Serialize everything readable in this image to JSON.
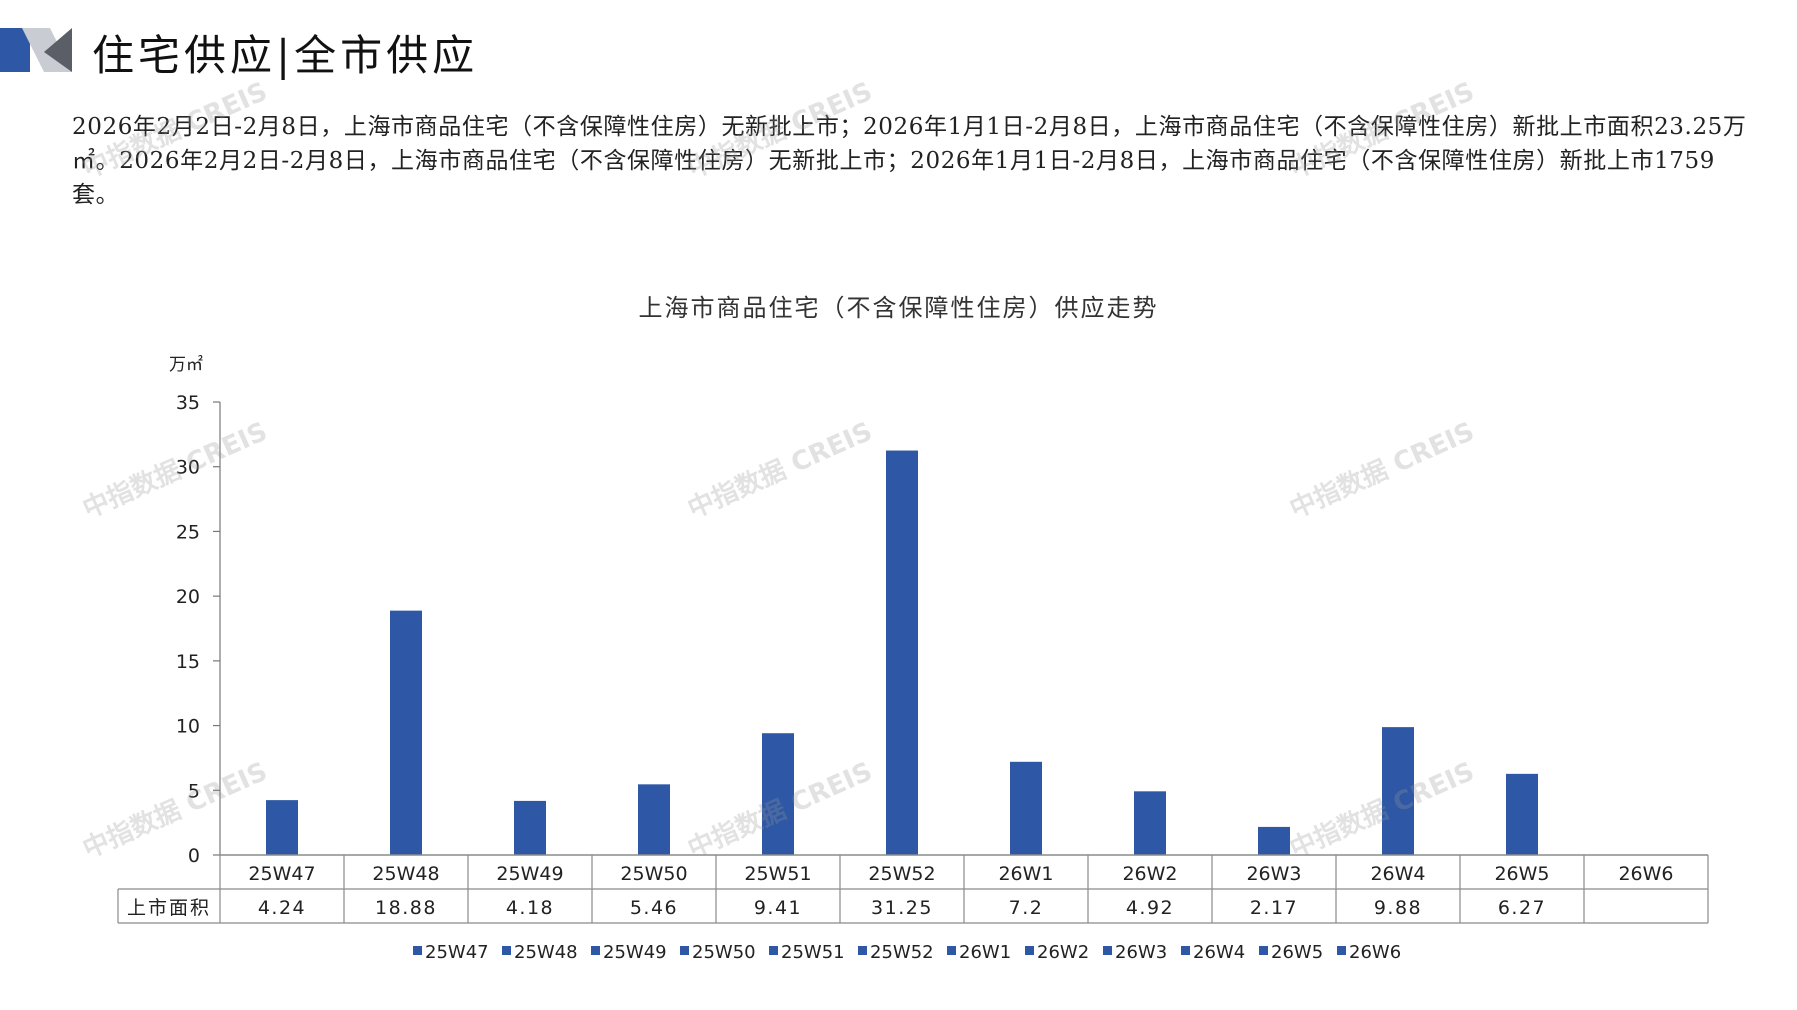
{
  "header": {
    "title": "住宅供应|全市供应",
    "accent_color": "#2E58A6",
    "secondary_color": "#BFC3CC"
  },
  "summary": {
    "text": "2026年2月2日-2月8日，上海市商品住宅（不含保障性住房）无新批上市；2026年1月1日-2月8日，上海市商品住宅（不含保障性住房）新批上市面积23.25万㎡。2026年2月2日-2月8日，上海市商品住宅（不含保障性住房）无新批上市；2026年1月1日-2月8日，上海市商品住宅（不含保障性住房）新批上市1759套。"
  },
  "watermark": {
    "text": "中指数据 CREIS"
  },
  "chart_data": {
    "type": "bar",
    "title": "上海市商品住宅（不含保障性住房）供应走势",
    "ylabel": "万㎡",
    "ylim": [
      0,
      35
    ],
    "yticks": [
      0,
      5,
      10,
      15,
      20,
      25,
      30,
      35
    ],
    "categories": [
      "25W47",
      "25W48",
      "25W49",
      "25W50",
      "25W51",
      "25W52",
      "26W1",
      "26W2",
      "26W3",
      "26W4",
      "26W5",
      "26W6"
    ],
    "series": [
      {
        "name": "上市面积",
        "values": [
          4.24,
          18.88,
          4.18,
          5.46,
          9.41,
          31.25,
          7.2,
          4.92,
          2.17,
          9.88,
          6.27,
          null
        ],
        "labels": [
          "4.24",
          "18.88",
          "4.18",
          "5.46",
          "9.41",
          "31.25",
          "7.2",
          "4.92",
          "2.17",
          "9.88",
          "6.27",
          ""
        ]
      }
    ],
    "bar_color": "#2E58A6",
    "legend": [
      "25W47",
      "25W48",
      "25W49",
      "25W50",
      "25W51",
      "25W52",
      "26W1",
      "26W2",
      "26W3",
      "26W4",
      "26W5",
      "26W6"
    ],
    "legend_position": "bottom",
    "data_table": true,
    "grid": false
  }
}
